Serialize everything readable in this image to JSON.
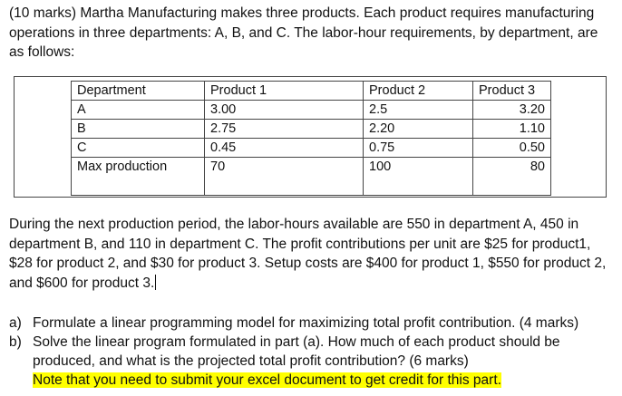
{
  "intro": "(10 marks) Martha Manufacturing makes three products. Each product requires manufacturing operations in three departments: A, B, and C. The labor-hour requirements, by department, are as follows:",
  "table": {
    "headers": [
      "Department",
      "Product 1",
      "Product 2",
      "Product 3"
    ],
    "rows": [
      [
        "A",
        "3.00",
        "2.5",
        "3.20"
      ],
      [
        "B",
        "2.75",
        "2.20",
        "1.10"
      ],
      [
        "C",
        "0.45",
        "0.75",
        "0.50"
      ],
      [
        "Max production",
        "70",
        "100",
        "80"
      ]
    ]
  },
  "details": "During the next production period, the labor-hours available are 550 in department A, 450 in department B, and 110 in department C. The profit contributions per unit are $25 for product1, $28 for product 2, and $30 for product 3. Setup costs are $400 for product 1, $550 for product 2, and $600 for product 3.",
  "parts": [
    {
      "marker": "a)",
      "text": "Formulate a linear programming model for maximizing total profit contribution. (4 marks)"
    },
    {
      "marker": "b)",
      "text": "Solve the linear program formulated in part (a). How much of each product should be produced, and what is the projected total profit contribution? (6 marks)",
      "note": "Note that you need to submit your excel document to get credit for this part."
    }
  ]
}
